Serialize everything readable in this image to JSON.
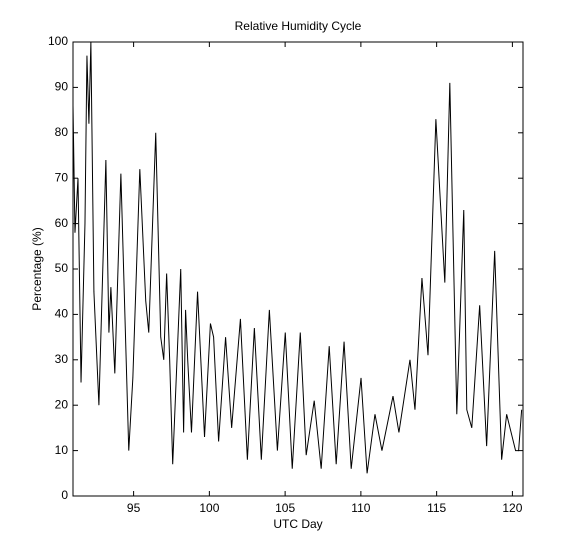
{
  "chart_data": {
    "type": "line",
    "title": "Relative Humidity Cycle",
    "x_label": "UTC Day",
    "y_label": "Percentage (%)",
    "x": [
      91.0,
      91.13,
      91.33,
      91.53,
      91.79,
      91.92,
      92.05,
      92.18,
      92.38,
      92.71,
      93.17,
      93.37,
      93.5,
      93.76,
      94.16,
      94.68,
      94.95,
      95.41,
      95.8,
      96.0,
      96.46,
      96.79,
      96.99,
      97.18,
      97.38,
      97.58,
      98.11,
      98.3,
      98.43,
      98.57,
      98.82,
      99.22,
      99.68,
      100.07,
      100.28,
      100.61,
      101.07,
      101.47,
      102.05,
      102.51,
      102.97,
      103.43,
      103.96,
      104.49,
      105.01,
      105.47,
      106.0,
      106.39,
      106.92,
      107.38,
      107.91,
      108.37,
      108.89,
      109.36,
      110.01,
      110.41,
      110.93,
      111.39,
      112.12,
      112.51,
      113.24,
      113.57,
      114.03,
      114.43,
      114.95,
      115.21,
      115.54,
      115.87,
      116.33,
      116.79,
      116.99,
      117.32,
      117.84,
      118.3,
      118.83,
      119.29,
      119.62,
      120.21,
      120.41,
      120.61
    ],
    "values": [
      86,
      58,
      70,
      25,
      60,
      97,
      82,
      100,
      45,
      20,
      74,
      36,
      46,
      27,
      71,
      10,
      26,
      72,
      43,
      36,
      80,
      35,
      30,
      49,
      30,
      7,
      50,
      14,
      41,
      30,
      14,
      45,
      13,
      38,
      35,
      12,
      35,
      15,
      39,
      8,
      37,
      8,
      41,
      10,
      36,
      6,
      36,
      9,
      21,
      6,
      33,
      7,
      34,
      6,
      26,
      5,
      18,
      10,
      22,
      14,
      30,
      19,
      48,
      31,
      83,
      67,
      47,
      91,
      18,
      63,
      19,
      15,
      42,
      11,
      54,
      8,
      18,
      10,
      10,
      19
    ],
    "color": "#000000",
    "xlim": [
      91,
      120.7
    ],
    "xticks": [
      95,
      100,
      105,
      110,
      115,
      120
    ],
    "ylim": [
      0,
      100
    ],
    "yticks": [
      0,
      10,
      20,
      30,
      40,
      50,
      60,
      70,
      80,
      90,
      100
    ]
  }
}
